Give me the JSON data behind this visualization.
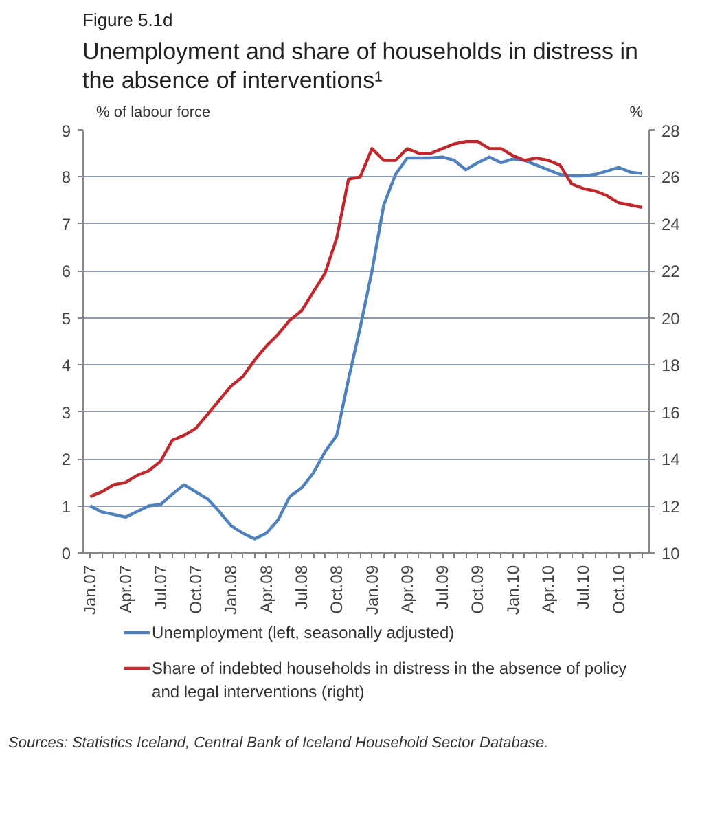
{
  "chart_data": {
    "type": "line",
    "subtitle": "Figure 5.1d",
    "title": "Unemployment and share of households in distress in the absence of interventions¹",
    "ylabel": "% of labour force",
    "y2label": "%",
    "categories": [
      "Jan.07",
      null,
      null,
      "Apr.07",
      null,
      null,
      "Jul.07",
      null,
      null,
      "Oct.07",
      null,
      null,
      "Jan.08",
      null,
      null,
      "Apr.08",
      null,
      null,
      "Jul.08",
      null,
      null,
      "Oct.08",
      null,
      null,
      "Jan.09",
      null,
      null,
      "Apr.09",
      null,
      null,
      "Jul.09",
      null,
      null,
      "Oct.09",
      null,
      null,
      "Jan.10",
      null,
      null,
      "Apr.10",
      null,
      null,
      "Jul.10",
      null,
      null,
      "Oct.10",
      null,
      null
    ],
    "series": [
      {
        "name": "Unemployment (left, seasonally adjusted)",
        "color": "#4f81bd",
        "values": [
          1.0,
          0.87,
          0.82,
          0.76,
          0.88,
          1.0,
          1.03,
          1.25,
          1.45,
          1.3,
          1.15,
          0.88,
          0.58,
          0.42,
          0.3,
          0.42,
          0.7,
          1.2,
          1.38,
          1.7,
          2.15,
          2.5,
          3.7,
          4.8,
          6.0,
          7.4,
          8.05,
          8.4,
          8.4,
          8.4,
          8.42,
          8.35,
          8.15,
          8.3,
          8.42,
          8.3,
          8.38,
          8.35,
          8.25,
          8.15,
          8.05,
          8.02,
          8.02,
          8.05,
          8.12,
          8.2,
          8.1,
          8.07
        ]
      },
      {
        "name": "Share of indebted households in distress in the absence of policy and legal interventions (right)",
        "color": "#c0282d",
        "axis": "y2",
        "values": [
          12.4,
          12.6,
          12.9,
          13.0,
          13.3,
          13.5,
          13.9,
          14.8,
          15.0,
          15.3,
          15.9,
          16.5,
          17.1,
          17.5,
          18.2,
          18.8,
          19.3,
          19.9,
          20.3,
          21.1,
          21.9,
          23.4,
          25.9,
          26.0,
          27.2,
          26.7,
          26.7,
          27.2,
          27.0,
          27.0,
          27.2,
          27.4,
          27.5,
          27.5,
          27.2,
          27.2,
          26.9,
          26.7,
          26.8,
          26.7,
          26.5,
          25.7,
          25.5,
          25.4,
          25.2,
          24.9,
          24.8,
          24.7
        ]
      }
    ],
    "ylim": [
      0,
      9
    ],
    "yticks": [
      0,
      1,
      2,
      3,
      4,
      5,
      6,
      7,
      8,
      9
    ],
    "y2lim": [
      10,
      28
    ],
    "y2ticks": [
      10,
      12,
      14,
      16,
      18,
      20,
      22,
      24,
      26,
      28
    ],
    "grid": "y",
    "legend": "bottom",
    "annotations": [
      "Sources: Statistics Iceland, Central Bank of Iceland Household Sector Database."
    ]
  }
}
